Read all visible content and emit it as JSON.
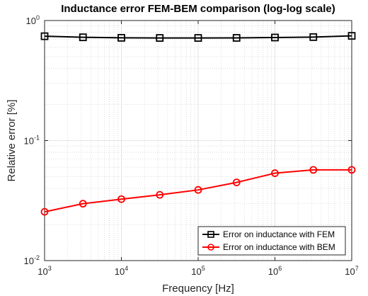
{
  "chart_data": {
    "type": "line",
    "title": "Inductance error FEM-BEM comparison (log-log scale)",
    "xlabel": "Frequency [Hz]",
    "ylabel": "Relative error [%]",
    "xscale": "log",
    "yscale": "log",
    "xlim": [
      1000,
      10000000
    ],
    "ylim": [
      0.01,
      1
    ],
    "grid": true,
    "minor_grid": true,
    "legend_position": "bottom-right",
    "x_ticks": [
      {
        "base": "10",
        "exp": "3",
        "value": 1000
      },
      {
        "base": "10",
        "exp": "4",
        "value": 10000
      },
      {
        "base": "10",
        "exp": "5",
        "value": 100000
      },
      {
        "base": "10",
        "exp": "6",
        "value": 1000000
      },
      {
        "base": "10",
        "exp": "7",
        "value": 10000000
      }
    ],
    "y_ticks": [
      {
        "base": "10",
        "exp": "-2",
        "value": 0.01
      },
      {
        "base": "10",
        "exp": "-1",
        "value": 0.1
      },
      {
        "base": "10",
        "exp": "0",
        "value": 1
      }
    ],
    "x": [
      1000,
      3162,
      10000,
      31623,
      100000,
      316228,
      1000000,
      3162278,
      10000000
    ],
    "series": [
      {
        "name": "Error on inductance with FEM",
        "color": "#000000",
        "marker": "square",
        "values": [
          0.74,
          0.725,
          0.718,
          0.716,
          0.716,
          0.717,
          0.722,
          0.728,
          0.745
        ]
      },
      {
        "name": "Error on inductance with BEM",
        "color": "#ff0000",
        "marker": "circle",
        "values": [
          0.0255,
          0.0298,
          0.0325,
          0.0353,
          0.0388,
          0.0448,
          0.0535,
          0.057,
          0.057
        ]
      }
    ]
  }
}
